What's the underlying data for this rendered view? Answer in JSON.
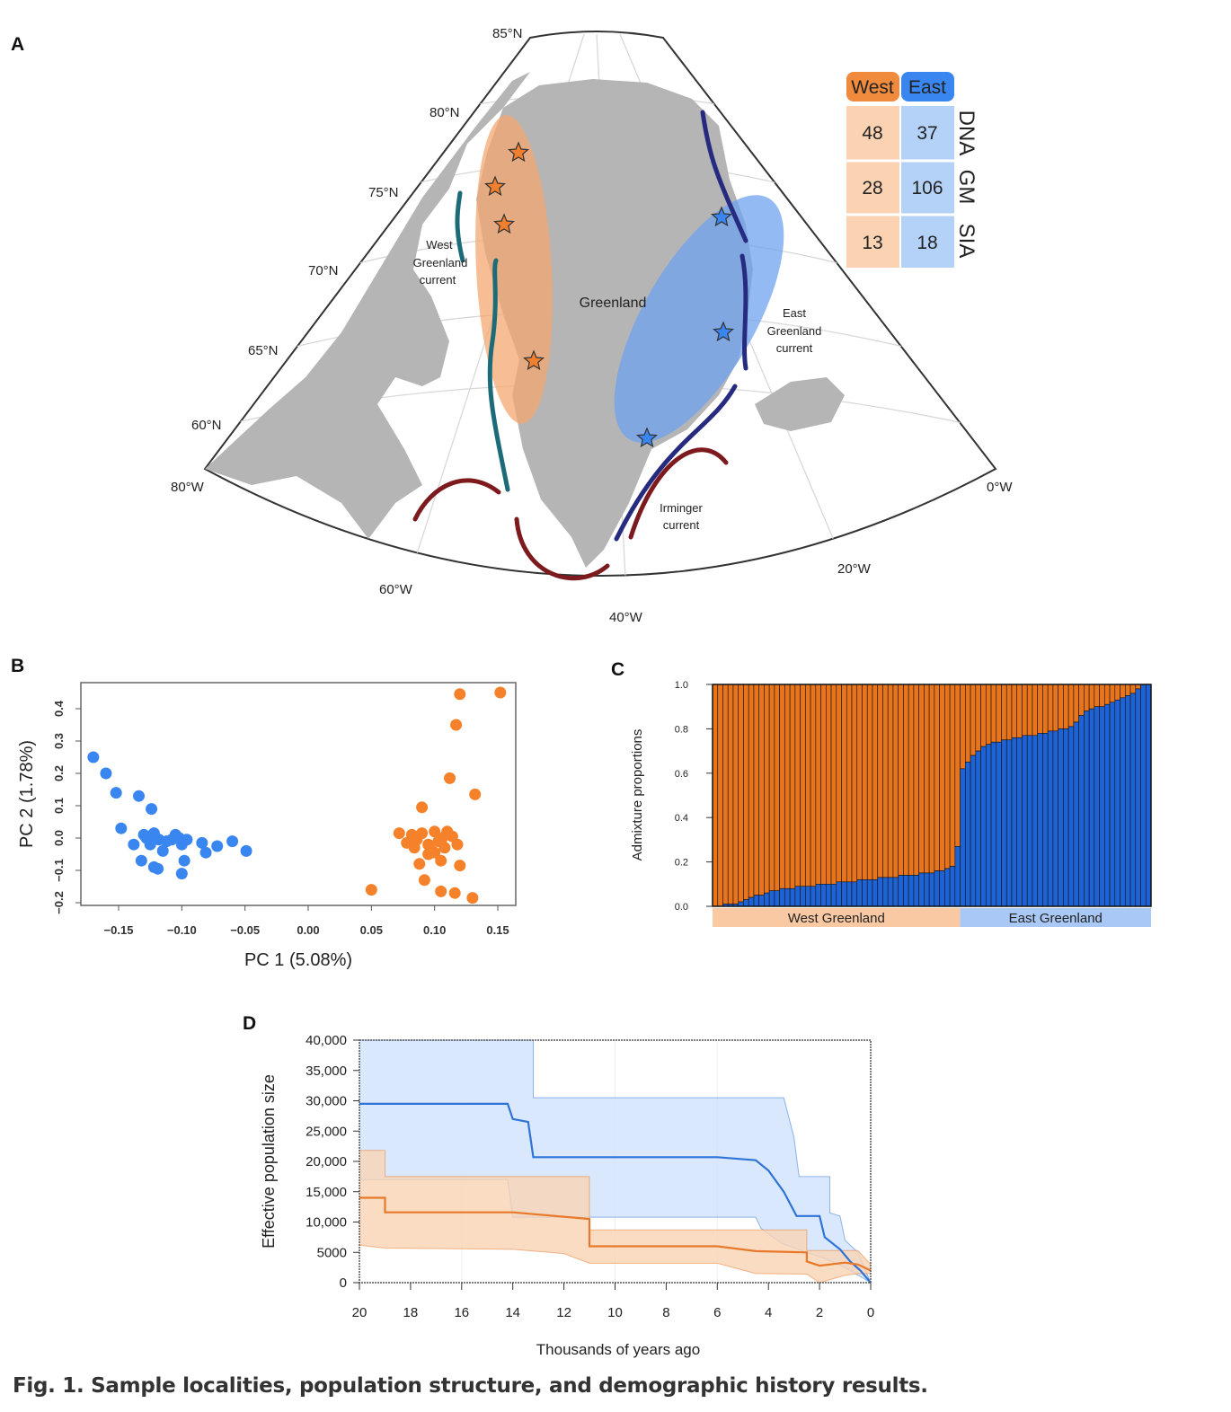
{
  "panels": {
    "a": "A",
    "b": "B",
    "c": "C",
    "d": "D"
  },
  "map": {
    "lat_labels": [
      "85°N",
      "80°N",
      "75°N",
      "70°N",
      "65°N",
      "60°N"
    ],
    "lon_labels": [
      "80°W",
      "60°W",
      "40°W",
      "20°W",
      "0°W"
    ],
    "place_labels": {
      "greenland": "Greenland"
    },
    "currents": {
      "west": [
        "West",
        "Greenland",
        "current"
      ],
      "east": [
        "East",
        "Greenland",
        "current"
      ],
      "irminger": [
        "Irminger",
        "current"
      ]
    },
    "colors": {
      "land": "#b5b5b5",
      "west": "#f4a872",
      "east": "#6fa3ee",
      "west_star": "#f08030",
      "east_star": "#3a86f0",
      "west_current": "#1d6b78",
      "east_current": "#262b80",
      "irminger": "#7d1a1e"
    },
    "sample_table": {
      "headers": [
        "West",
        "East"
      ],
      "rows": [
        {
          "label": "DNA",
          "west": "48",
          "east": "37"
        },
        {
          "label": "GM",
          "west": "28",
          "east": "106"
        },
        {
          "label": "SIA",
          "west": "13",
          "east": "18"
        }
      ]
    }
  },
  "chart_data": [
    {
      "panel": "B",
      "type": "scatter",
      "xlabel": "PC 1 (5.08%)",
      "ylabel": "PC 2 (1.78%)",
      "xlim": [
        -0.18,
        0.165
      ],
      "ylim": [
        -0.21,
        0.47
      ],
      "xticks": [
        "-0.15",
        "-0.10",
        "-0.05",
        "0.00",
        "0.05",
        "0.10",
        "0.15"
      ],
      "yticks": [
        "-0.2",
        "-0.1",
        "0.0",
        "0.1",
        "0.2",
        "0.3",
        "0.4"
      ],
      "series": [
        {
          "name": "East",
          "color": "#3a86f0",
          "points": [
            [
              -0.17,
              0.25
            ],
            [
              -0.16,
              0.2
            ],
            [
              -0.152,
              0.14
            ],
            [
              -0.134,
              0.13
            ],
            [
              -0.124,
              0.09
            ],
            [
              -0.148,
              0.03
            ],
            [
              -0.138,
              -0.02
            ],
            [
              -0.13,
              0.01
            ],
            [
              -0.128,
              0.0
            ],
            [
              -0.125,
              -0.02
            ],
            [
              -0.122,
              0.015
            ],
            [
              -0.118,
              -0.005
            ],
            [
              -0.115,
              -0.04
            ],
            [
              -0.112,
              -0.01
            ],
            [
              -0.108,
              -0.005
            ],
            [
              -0.105,
              0.01
            ],
            [
              -0.102,
              0.0
            ],
            [
              -0.1,
              -0.02
            ],
            [
              -0.096,
              -0.005
            ],
            [
              -0.084,
              -0.015
            ],
            [
              -0.081,
              -0.045
            ],
            [
              -0.072,
              -0.025
            ],
            [
              -0.06,
              -0.01
            ],
            [
              -0.049,
              -0.04
            ],
            [
              -0.132,
              -0.07
            ],
            [
              -0.122,
              -0.09
            ],
            [
              -0.119,
              -0.095
            ],
            [
              -0.098,
              -0.07
            ],
            [
              -0.1,
              -0.11
            ],
            [
              -0.126,
              0.005
            ]
          ]
        },
        {
          "name": "West",
          "color": "#f5822a",
          "points": [
            [
              0.12,
              0.445
            ],
            [
              0.152,
              0.45
            ],
            [
              0.117,
              0.35
            ],
            [
              0.112,
              0.185
            ],
            [
              0.132,
              0.135
            ],
            [
              0.09,
              0.095
            ],
            [
              0.072,
              0.015
            ],
            [
              0.078,
              -0.015
            ],
            [
              0.082,
              0.01
            ],
            [
              0.086,
              -0.005
            ],
            [
              0.09,
              0.015
            ],
            [
              0.095,
              -0.02
            ],
            [
              0.098,
              -0.04
            ],
            [
              0.1,
              0.02
            ],
            [
              0.103,
              -0.01
            ],
            [
              0.106,
              0.0
            ],
            [
              0.108,
              -0.03
            ],
            [
              0.11,
              0.02
            ],
            [
              0.114,
              0.005
            ],
            [
              0.118,
              -0.02
            ],
            [
              0.088,
              -0.08
            ],
            [
              0.095,
              -0.05
            ],
            [
              0.105,
              -0.07
            ],
            [
              0.12,
              -0.085
            ],
            [
              0.092,
              -0.13
            ],
            [
              0.05,
              -0.16
            ],
            [
              0.105,
              -0.165
            ],
            [
              0.116,
              -0.17
            ],
            [
              0.13,
              -0.185
            ],
            [
              0.1,
              -0.045
            ],
            [
              0.084,
              -0.03
            ]
          ]
        }
      ]
    },
    {
      "panel": "C",
      "type": "bar",
      "stacked": true,
      "ylabel": "Admixture proportions",
      "ylim": [
        0,
        1
      ],
      "yticks": [
        "0.0",
        "0.2",
        "0.4",
        "0.6",
        "0.8",
        "1.0"
      ],
      "groups": [
        {
          "name": "West Greenland",
          "count": 48,
          "color": "#f9c9a3"
        },
        {
          "name": "East Greenland",
          "count": 37,
          "color": "#a9c8f5"
        }
      ],
      "colors": {
        "west": "#e8741c",
        "east": "#1e63d6"
      },
      "east_proportion": [
        0.0,
        0.0,
        0.01,
        0.01,
        0.01,
        0.02,
        0.03,
        0.04,
        0.05,
        0.05,
        0.06,
        0.07,
        0.07,
        0.08,
        0.08,
        0.08,
        0.09,
        0.09,
        0.09,
        0.09,
        0.1,
        0.1,
        0.1,
        0.1,
        0.11,
        0.11,
        0.11,
        0.11,
        0.12,
        0.12,
        0.12,
        0.12,
        0.13,
        0.13,
        0.13,
        0.13,
        0.14,
        0.14,
        0.14,
        0.14,
        0.15,
        0.15,
        0.15,
        0.16,
        0.16,
        0.17,
        0.18,
        0.27,
        0.62,
        0.65,
        0.68,
        0.7,
        0.72,
        0.73,
        0.74,
        0.74,
        0.75,
        0.75,
        0.76,
        0.76,
        0.77,
        0.77,
        0.77,
        0.78,
        0.78,
        0.79,
        0.79,
        0.8,
        0.8,
        0.81,
        0.83,
        0.86,
        0.88,
        0.89,
        0.9,
        0.9,
        0.91,
        0.92,
        0.93,
        0.94,
        0.95,
        0.96,
        0.98,
        1.0,
        1.0
      ]
    },
    {
      "panel": "D",
      "type": "line",
      "xlabel": "Thousands of years ago",
      "ylabel": "Effective population size",
      "xlim": [
        20,
        0
      ],
      "ylim": [
        0,
        40000
      ],
      "xticks": [
        "20",
        "18",
        "16",
        "14",
        "12",
        "10",
        "8",
        "6",
        "4",
        "2",
        "0"
      ],
      "yticks": [
        "0",
        "5000",
        "10,000",
        "15,000",
        "20,000",
        "25,000",
        "30,000",
        "35,000",
        "40,000"
      ],
      "series": [
        {
          "name": "East",
          "color": "#2f72d8",
          "fill": "#cfe2fb",
          "median": [
            [
              20,
              29500
            ],
            [
              14.2,
              29500
            ],
            [
              14.0,
              27000
            ],
            [
              13.4,
              26500
            ],
            [
              13.2,
              20700
            ],
            [
              6,
              20700
            ],
            [
              4.5,
              20200
            ],
            [
              4,
              18500
            ],
            [
              3.4,
              15000
            ],
            [
              2.9,
              11000
            ],
            [
              2.0,
              11000
            ],
            [
              1.8,
              7500
            ],
            [
              1.2,
              5500
            ],
            [
              0.8,
              3500
            ],
            [
              0.4,
              2000
            ],
            [
              0,
              0
            ]
          ],
          "upper": [
            [
              20,
              40000
            ],
            [
              13.2,
              40000
            ],
            [
              13.2,
              30500
            ],
            [
              3.4,
              30500
            ],
            [
              3.0,
              24000
            ],
            [
              2.8,
              17500
            ],
            [
              1.6,
              17500
            ],
            [
              1.6,
              11500
            ],
            [
              1.2,
              11000
            ],
            [
              1,
              7000
            ],
            [
              0.5,
              5000
            ],
            [
              0,
              0
            ]
          ],
          "lower": [
            [
              20,
              17000
            ],
            [
              14.2,
              17000
            ],
            [
              14,
              10800
            ],
            [
              4.5,
              10800
            ],
            [
              4.3,
              9000
            ],
            [
              3.5,
              6500
            ],
            [
              2.5,
              5000
            ],
            [
              1.8,
              4000
            ],
            [
              1,
              2500
            ],
            [
              0,
              0
            ]
          ]
        },
        {
          "name": "West",
          "color": "#e8782a",
          "fill": "#f9d3b4",
          "median": [
            [
              20,
              14000
            ],
            [
              19,
              14000
            ],
            [
              19,
              11600
            ],
            [
              14,
              11600
            ],
            [
              11,
              10500
            ],
            [
              11,
              6000
            ],
            [
              6,
              6000
            ],
            [
              4.5,
              5200
            ],
            [
              2.5,
              5000
            ],
            [
              2.5,
              3500
            ],
            [
              2,
              2800
            ],
            [
              1,
              3300
            ],
            [
              0.5,
              3000
            ],
            [
              0,
              2000
            ]
          ],
          "upper": [
            [
              20,
              21800
            ],
            [
              19,
              21800
            ],
            [
              19,
              17500
            ],
            [
              11,
              17500
            ],
            [
              11,
              8700
            ],
            [
              2.5,
              8700
            ],
            [
              2.5,
              5300
            ],
            [
              0.5,
              5300
            ],
            [
              0,
              3000
            ]
          ],
          "lower": [
            [
              20,
              6200
            ],
            [
              19,
              5700
            ],
            [
              14,
              5500
            ],
            [
              12,
              4800
            ],
            [
              11,
              3200
            ],
            [
              6,
              3200
            ],
            [
              4.5,
              1500
            ],
            [
              2.5,
              1400
            ],
            [
              2,
              0
            ],
            [
              1,
              1200
            ],
            [
              0.5,
              1500
            ],
            [
              0,
              1500
            ]
          ]
        }
      ]
    }
  ],
  "caption": {
    "label": "Fig. 1.",
    "text": "Sample localities, population structure, and demographic history results."
  }
}
